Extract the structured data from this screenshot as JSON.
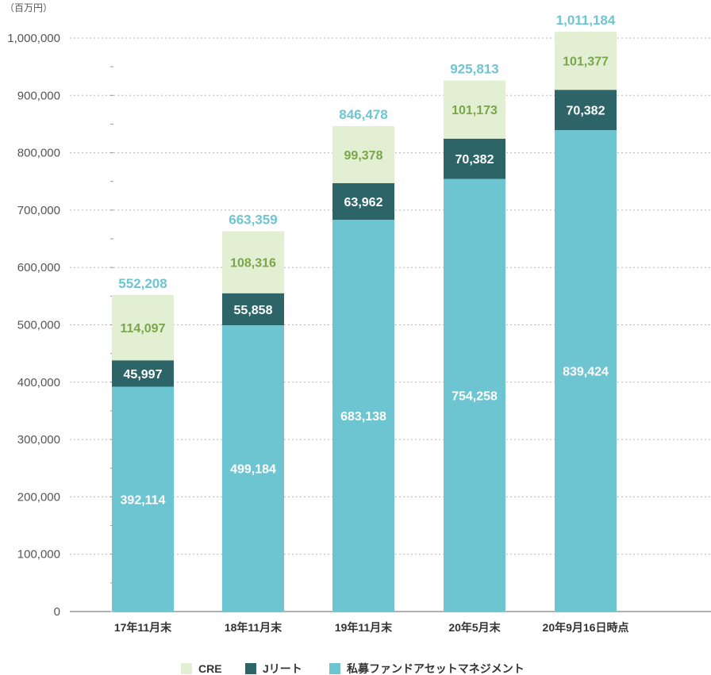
{
  "chart_data": {
    "type": "bar",
    "stacked": true,
    "unit_label": "（百万円）",
    "categories": [
      "17年11月末",
      "18年11月末",
      "19年11月末",
      "20年5月末",
      "20年9月16日時点"
    ],
    "series": [
      {
        "name": "私募ファンドアセットマネジメント",
        "values": [
          392114,
          499184,
          683138,
          754258,
          839424
        ],
        "color": "#6ec5d2",
        "label_color": "#ffffff"
      },
      {
        "name": "Jリート",
        "values": [
          45997,
          55858,
          63962,
          70382,
          70382
        ],
        "color": "#2d6467",
        "label_color": "#ffffff"
      },
      {
        "name": "CRE",
        "values": [
          114097,
          108316,
          99378,
          101173,
          101377
        ],
        "color": "#e2efd3",
        "label_color": "#7aa64a"
      }
    ],
    "totals": [
      552208,
      663359,
      846478,
      925813,
      1011184
    ],
    "total_label_color": "#6ec5d2",
    "ylim": [
      0,
      1000000
    ],
    "yticks": [
      0,
      100000,
      200000,
      300000,
      400000,
      500000,
      600000,
      700000,
      800000,
      900000,
      1000000
    ],
    "ytick_labels": [
      "0",
      "100,000",
      "200,000",
      "300,000",
      "400,000",
      "500,000",
      "600,000",
      "700,000",
      "800,000",
      "900,000",
      "1,000,000"
    ],
    "legend_order": [
      "CRE",
      "Jリート",
      "私募ファンドアセットマネジメント"
    ],
    "legend_position": "bottom-center",
    "grid": "horizontal-dotted"
  }
}
